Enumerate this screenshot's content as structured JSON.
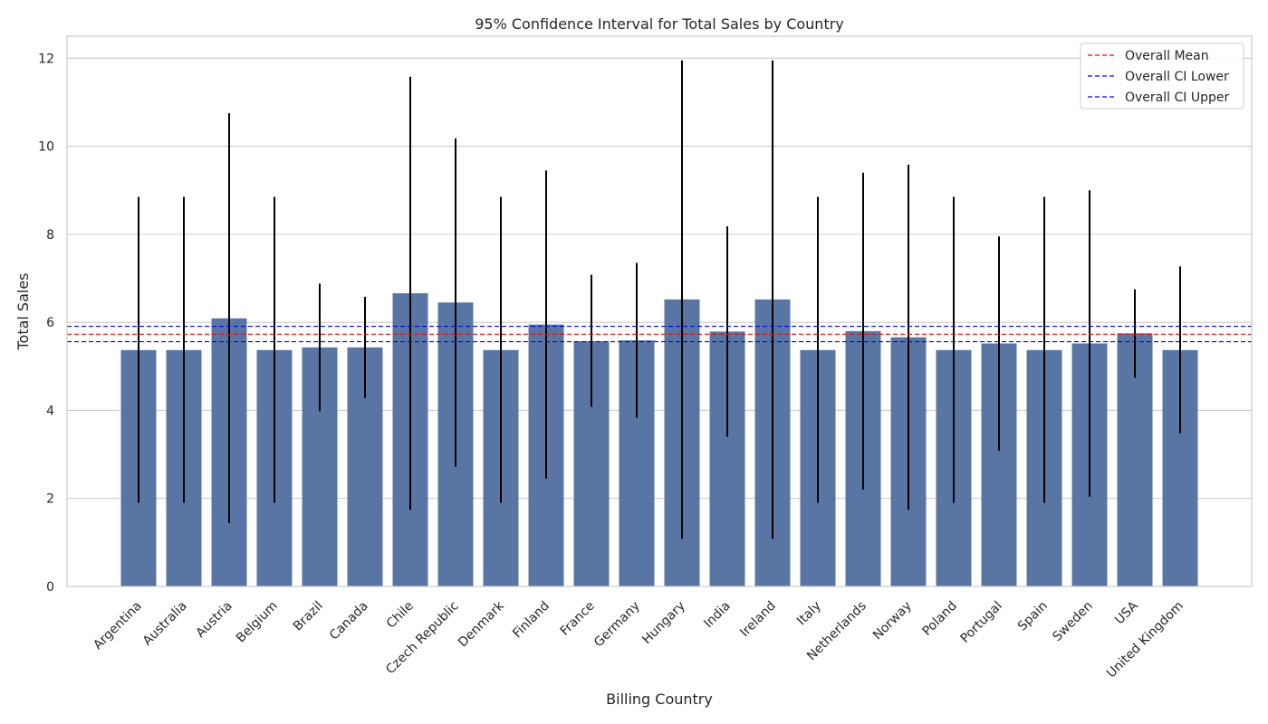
{
  "chart_data": {
    "type": "bar",
    "title": "95% Confidence Interval for Total Sales by Country",
    "xlabel": "Billing Country",
    "ylabel": "Total Sales",
    "ylim": [
      0,
      12.5
    ],
    "yticks": [
      0,
      2,
      4,
      6,
      8,
      10,
      12
    ],
    "grid": true,
    "legend_position": "top-right",
    "bar_color": "#5975a4",
    "categories": [
      "Argentina",
      "Australia",
      "Austria",
      "Belgium",
      "Brazil",
      "Canada",
      "Chile",
      "Czech Republic",
      "Denmark",
      "Finland",
      "France",
      "Germany",
      "Hungary",
      "India",
      "Ireland",
      "Italy",
      "Netherlands",
      "Norway",
      "Poland",
      "Portugal",
      "Spain",
      "Sweden",
      "USA",
      "United Kingdom"
    ],
    "values": [
      5.37,
      5.37,
      6.09,
      5.37,
      5.43,
      5.43,
      6.66,
      6.45,
      5.37,
      5.95,
      5.57,
      5.59,
      6.52,
      5.79,
      6.52,
      5.37,
      5.8,
      5.66,
      5.37,
      5.52,
      5.37,
      5.52,
      5.75,
      5.37
    ],
    "ci_lower": [
      1.9,
      1.9,
      1.44,
      1.9,
      3.98,
      4.28,
      1.74,
      2.72,
      1.9,
      2.45,
      4.08,
      3.83,
      1.08,
      3.4,
      1.08,
      1.9,
      2.2,
      1.74,
      1.9,
      3.08,
      1.9,
      2.04,
      4.74,
      3.48
    ],
    "ci_upper": [
      8.85,
      8.85,
      10.75,
      8.85,
      6.88,
      6.58,
      11.58,
      10.18,
      8.85,
      9.45,
      7.08,
      7.35,
      11.95,
      8.18,
      11.95,
      8.85,
      9.4,
      9.58,
      8.85,
      7.95,
      8.85,
      9.0,
      6.75,
      7.27
    ],
    "reference_lines": [
      {
        "name": "Overall Mean",
        "value": 5.73,
        "color": "#ff0000"
      },
      {
        "name": "Overall CI Lower",
        "value": 5.56,
        "color": "#0000ff"
      },
      {
        "name": "Overall CI Upper",
        "value": 5.91,
        "color": "#0000ff"
      }
    ]
  }
}
